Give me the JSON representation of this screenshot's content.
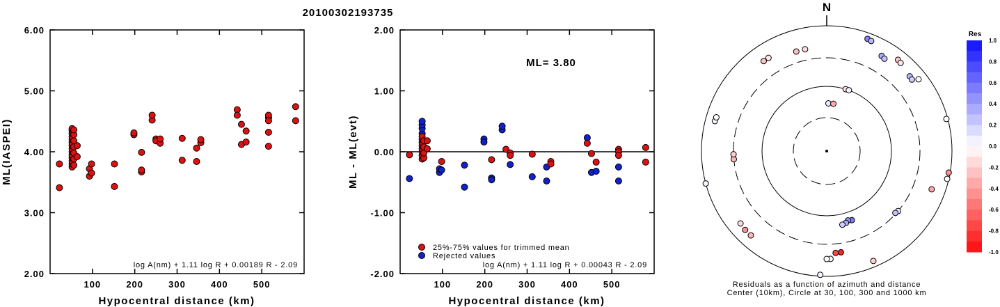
{
  "title": "20100302193735",
  "colors": {
    "accepted": "#dd1111",
    "rejected": "#1122cc"
  },
  "chart_data": [
    {
      "type": "scatter",
      "xlabel": "Hypocentral distance (km)",
      "ylabel": "ML(IASPEI)",
      "xlim": [
        0,
        600
      ],
      "ylim": [
        2.0,
        6.0
      ],
      "xticks": [
        "100",
        "200",
        "300",
        "400",
        "500"
      ],
      "yticks": [
        "2.00",
        "3.00",
        "4.00",
        "5.00",
        "6.00"
      ],
      "annotation": "log A(nm) + 1.11 log R + 0.00189 R - 2.09",
      "series": [
        {
          "points": [
            [
              22,
              3.8
            ],
            [
              22,
              3.41
            ],
            [
              52,
              3.75
            ],
            [
              52,
              3.8
            ],
            [
              52,
              3.85
            ],
            [
              52,
              3.9
            ],
            [
              52,
              3.95
            ],
            [
              52,
              4.0
            ],
            [
              52,
              4.05
            ],
            [
              52,
              4.1
            ],
            [
              52,
              4.15
            ],
            [
              52,
              4.2
            ],
            [
              52,
              4.25
            ],
            [
              52,
              4.3
            ],
            [
              52,
              4.35
            ],
            [
              52,
              4.38
            ],
            [
              56,
              3.78
            ],
            [
              56,
              3.88
            ],
            [
              56,
              3.98
            ],
            [
              56,
              4.08
            ],
            [
              56,
              4.18
            ],
            [
              56,
              4.28
            ],
            [
              56,
              4.36
            ],
            [
              64,
              3.92
            ],
            [
              64,
              4.1
            ],
            [
              93,
              3.6
            ],
            [
              93,
              3.72
            ],
            [
              98,
              3.65
            ],
            [
              98,
              3.8
            ],
            [
              152,
              3.43
            ],
            [
              152,
              3.8
            ],
            [
              198,
              4.28
            ],
            [
              198,
              4.31
            ],
            [
              216,
              3.99
            ],
            [
              216,
              3.67
            ],
            [
              216,
              3.7
            ],
            [
              241,
              4.52
            ],
            [
              241,
              4.6
            ],
            [
              250,
              4.21
            ],
            [
              250,
              4.18
            ],
            [
              260,
              4.14
            ],
            [
              260,
              4.21
            ],
            [
              312,
              3.86
            ],
            [
              312,
              4.22
            ],
            [
              346,
              3.84
            ],
            [
              346,
              4.06
            ],
            [
              356,
              4.15
            ],
            [
              356,
              4.2
            ],
            [
              442,
              4.69
            ],
            [
              442,
              4.6
            ],
            [
              452,
              4.45
            ],
            [
              452,
              4.12
            ],
            [
              463,
              4.16
            ],
            [
              463,
              4.34
            ],
            [
              516,
              4.56
            ],
            [
              516,
              4.6
            ],
            [
              516,
              4.51
            ],
            [
              516,
              4.32
            ],
            [
              516,
              4.09
            ],
            [
              580,
              4.74
            ],
            [
              580,
              4.51
            ]
          ]
        }
      ]
    },
    {
      "type": "scatter",
      "xlabel": "Hypocentral distance (km)",
      "ylabel": "ML - ML(evt)",
      "xlim": [
        0,
        600
      ],
      "ylim": [
        -2.0,
        2.0
      ],
      "xticks": [
        "100",
        "200",
        "300",
        "400",
        "500"
      ],
      "yticks": [
        "-2.00",
        "-1.00",
        "0.00",
        "1.00",
        "2.00"
      ],
      "ml_label": "ML= 3.80",
      "annotation": "log A(nm) + 1.11 log R + 0.00043 R - 2.09",
      "legend": [
        "25%-75% values for trimmed mean",
        "Rejected values"
      ],
      "series": [
        {
          "name": "25%-75% values for trimmed mean",
          "points": [
            [
              22,
              -0.05
            ],
            [
              52,
              -0.12
            ],
            [
              52,
              -0.06
            ],
            [
              52,
              0.0
            ],
            [
              52,
              0.05
            ],
            [
              52,
              0.1
            ],
            [
              52,
              0.15
            ],
            [
              52,
              0.2
            ],
            [
              52,
              0.25
            ],
            [
              56,
              -0.1
            ],
            [
              56,
              -0.02
            ],
            [
              56,
              0.08
            ],
            [
              56,
              0.18
            ],
            [
              64,
              0.18
            ],
            [
              64,
              0.05
            ],
            [
              98,
              -0.16
            ],
            [
              216,
              -0.13
            ],
            [
              250,
              0.04
            ],
            [
              260,
              -0.02
            ],
            [
              260,
              -0.06
            ],
            [
              312,
              -0.04
            ],
            [
              356,
              -0.16
            ],
            [
              356,
              -0.2
            ],
            [
              442,
              0.14
            ],
            [
              452,
              -0.03
            ],
            [
              463,
              -0.17
            ],
            [
              516,
              0.04
            ],
            [
              516,
              0.0
            ],
            [
              516,
              -0.06
            ],
            [
              580,
              0.07
            ],
            [
              580,
              -0.17
            ]
          ]
        },
        {
          "name": "Rejected values",
          "points": [
            [
              22,
              -0.44
            ],
            [
              52,
              0.3
            ],
            [
              52,
              0.38
            ],
            [
              52,
              0.44
            ],
            [
              52,
              0.5
            ],
            [
              93,
              -0.34
            ],
            [
              93,
              -0.28
            ],
            [
              98,
              -0.3
            ],
            [
              152,
              -0.58
            ],
            [
              152,
              -0.22
            ],
            [
              198,
              0.21
            ],
            [
              198,
              0.16
            ],
            [
              216,
              -0.43
            ],
            [
              216,
              -0.46
            ],
            [
              241,
              0.36
            ],
            [
              241,
              0.42
            ],
            [
              260,
              -0.21
            ],
            [
              312,
              -0.41
            ],
            [
              346,
              -0.48
            ],
            [
              346,
              -0.25
            ],
            [
              442,
              0.23
            ],
            [
              452,
              -0.34
            ],
            [
              463,
              -0.32
            ],
            [
              516,
              -0.25
            ],
            [
              516,
              -0.48
            ]
          ]
        }
      ]
    },
    {
      "type": "scatter",
      "title": "N",
      "caption_line1": "Residuals as a function of azimuth and distance",
      "caption_line2": "Center (10km), Circle at 30, 100, 300 and 1000 km",
      "colorbar_title": "Res",
      "colorbar_ticks": [
        "1.0",
        "0.8",
        "0.6",
        "0.4",
        "0.2",
        "0.0",
        "-0.2",
        "-0.4",
        "-0.6",
        "-0.8",
        "-1.0"
      ],
      "stations": [
        {
          "azimuth": 2,
          "distance": 52,
          "res": 0.1
        },
        {
          "azimuth": 8,
          "distance": 52,
          "res": -0.35
        },
        {
          "azimuth": 343,
          "distance": 450,
          "res": -0.25
        },
        {
          "azimuth": 348,
          "distance": 450,
          "res": -0.15
        },
        {
          "azimuth": 17,
          "distance": 100,
          "res": -0.1
        },
        {
          "azimuth": 20,
          "distance": 100,
          "res": 0.05
        },
        {
          "azimuth": 20,
          "distance": 800,
          "res": 0.5
        },
        {
          "azimuth": 22,
          "distance": 780,
          "res": 0.3
        },
        {
          "azimuth": 30,
          "distance": 560,
          "res": 0.35
        },
        {
          "azimuth": 32,
          "distance": 540,
          "res": 0.25
        },
        {
          "azimuth": 38,
          "distance": 700,
          "res": -0.25
        },
        {
          "azimuth": 40,
          "distance": 680,
          "res": -0.1
        },
        {
          "azimuth": 48,
          "distance": 600,
          "res": 0.3
        },
        {
          "azimuth": 50,
          "distance": 590,
          "res": 0.2
        },
        {
          "azimuth": 52,
          "distance": 720,
          "res": 0.0
        },
        {
          "azimuth": 75,
          "distance": 950,
          "res": 0.0
        },
        {
          "azimuth": 100,
          "distance": 950,
          "res": -0.45
        },
        {
          "azimuth": 103,
          "distance": 940,
          "res": 0.0
        },
        {
          "azimuth": 110,
          "distance": 600,
          "res": -0.35
        },
        {
          "azimuth": 130,
          "distance": 300,
          "res": 0.1
        },
        {
          "azimuth": 132,
          "distance": 290,
          "res": 0.25
        },
        {
          "azimuth": 160,
          "distance": 140,
          "res": 0.55
        },
        {
          "azimuth": 163,
          "distance": 135,
          "res": 0.45
        },
        {
          "azimuth": 165,
          "distance": 145,
          "res": 0.35
        },
        {
          "azimuth": 168,
          "distance": 150,
          "res": 0.2
        },
        {
          "azimuth": 157,
          "distance": 800,
          "res": -0.2
        },
        {
          "azimuth": 172,
          "distance": 420,
          "res": -0.9
        },
        {
          "azimuth": 175,
          "distance": 420,
          "res": -0.75
        },
        {
          "azimuth": 178,
          "distance": 520,
          "res": 0.0
        },
        {
          "azimuth": 180,
          "distance": 520,
          "res": 0.0
        },
        {
          "azimuth": 183,
          "distance": 950,
          "res": 0.05
        },
        {
          "azimuth": 222,
          "distance": 640,
          "res": -0.3
        },
        {
          "azimuth": 226,
          "distance": 640,
          "res": -0.45
        },
        {
          "azimuth": 230,
          "distance": 620,
          "res": -0.15
        },
        {
          "azimuth": 265,
          "distance": 300,
          "res": -0.3
        },
        {
          "azimuth": 268,
          "distance": 300,
          "res": -0.2
        },
        {
          "azimuth": 255,
          "distance": 1000,
          "res": 0.05
        },
        {
          "azimuth": 285,
          "distance": 700,
          "res": 0.05
        },
        {
          "azimuth": 287,
          "distance": 690,
          "res": 0.0
        },
        {
          "azimuth": 325,
          "distance": 560,
          "res": -0.25
        },
        {
          "azimuth": 328,
          "distance": 560,
          "res": -0.1
        }
      ]
    }
  ]
}
